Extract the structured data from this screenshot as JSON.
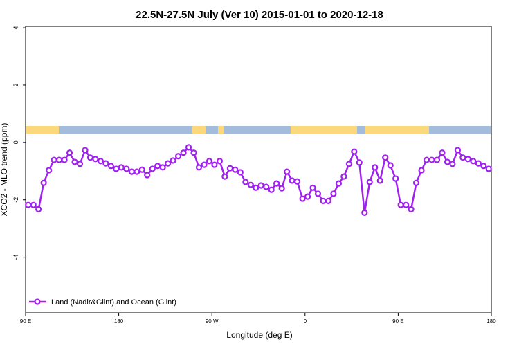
{
  "chart_data": {
    "type": "line",
    "title": "22.5N-27.5N July (Ver 10)   2015-01-01 to 2020-12-18",
    "x_label": "Longitude (deg E)",
    "y_label": "XCO2 - MLO trend (ppm)",
    "x": [
      92.5,
      97.5,
      102.5,
      107.5,
      112.5,
      117.5,
      122.5,
      127.5,
      132.5,
      137.5,
      142.5,
      147.5,
      152.5,
      157.5,
      162.5,
      167.5,
      172.5,
      177.5,
      182.5,
      187.5,
      192.5,
      197.5,
      202.5,
      207.5,
      212.5,
      217.5,
      222.5,
      227.5,
      232.5,
      237.5,
      242.5,
      247.5,
      252.5,
      257.5,
      262.5,
      267.5,
      272.5,
      277.5,
      282.5,
      287.5,
      292.5,
      297.5,
      302.5,
      307.5,
      312.5,
      317.5,
      322.5,
      327.5,
      332.5,
      337.5,
      342.5,
      347.5,
      352.5,
      357.5,
      362.5,
      367.5,
      372.5,
      377.5,
      382.5,
      387.5,
      392.5,
      397.5,
      402.5,
      407.5,
      412.5,
      417.5,
      422.5,
      427.5,
      432.5,
      437.5,
      442.5,
      447.5,
      452.5,
      457.5,
      462.5,
      467.5,
      472.5,
      477.5,
      482.5,
      487.5,
      492.5,
      497.5,
      502.5,
      507.5,
      512.5,
      517.5,
      522.5,
      527.5,
      532.5,
      537.5
    ],
    "series": [
      {
        "name": "Land (Nadir&Glint) and Ocean (Glint)",
        "color": "#a020f0",
        "values": [
          -2.18,
          -2.18,
          -2.33,
          -1.41,
          -0.97,
          -0.61,
          -0.61,
          -0.61,
          -0.36,
          -0.68,
          -0.75,
          -0.27,
          -0.53,
          -0.58,
          -0.65,
          -0.73,
          -0.82,
          -0.92,
          -0.87,
          -0.92,
          -1.02,
          -1.02,
          -0.95,
          -1.14,
          -0.92,
          -0.82,
          -0.87,
          -0.73,
          -0.63,
          -0.48,
          -0.36,
          -0.17,
          -0.36,
          -0.87,
          -0.78,
          -0.65,
          -0.78,
          -0.65,
          -1.19,
          -0.9,
          -0.95,
          -1.04,
          -1.38,
          -1.48,
          -1.58,
          -1.5,
          -1.55,
          -1.65,
          -1.43,
          -1.6,
          -1.02,
          -1.33,
          -1.36,
          -1.96,
          -1.89,
          -1.58,
          -1.79,
          -2.04,
          -2.04,
          -1.79,
          -1.43,
          -1.19,
          -0.75,
          -0.32,
          -0.7,
          -2.45,
          -1.38,
          -0.87,
          -1.33,
          -0.53,
          -0.8,
          -1.26,
          -2.18,
          -2.18,
          -2.33,
          -1.41,
          -0.97,
          -0.61,
          -0.61,
          -0.61,
          -0.36,
          -0.68,
          -0.75,
          -0.27,
          -0.53,
          -0.58,
          -0.65,
          -0.73,
          -0.82,
          -0.92
        ]
      }
    ],
    "xlim": [
      90,
      540
    ],
    "xticks": [
      {
        "value": 90,
        "label": "90 E"
      },
      180,
      {
        "value": 270,
        "label": "90 W"
      },
      {
        "value": 360,
        "label": "0"
      },
      {
        "value": 450,
        "label": "90 E"
      },
      {
        "value": 540,
        "label": "180"
      }
    ],
    "ylim": [
      -5.94,
      4.05
    ],
    "yticks": [
      -4,
      -2,
      0,
      2,
      4
    ],
    "legend": "bottom-left"
  }
}
